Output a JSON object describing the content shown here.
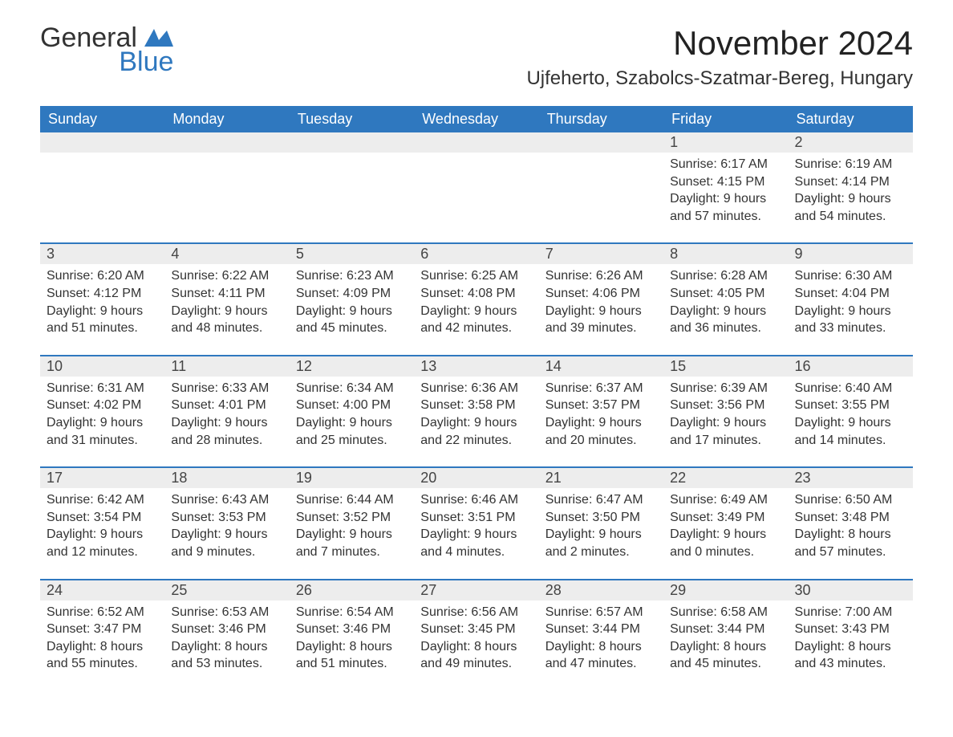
{
  "brand": {
    "name_part1": "General",
    "name_part2": "Blue"
  },
  "title": "November 2024",
  "location": "Ujfeherto, Szabolcs-Szatmar-Bereg, Hungary",
  "colors": {
    "header_bg": "#2f78bf",
    "header_text": "#ffffff",
    "row_bg": "#ededed",
    "border": "#2f78bf",
    "text": "#333333",
    "bg": "#ffffff"
  },
  "days_of_week": [
    "Sunday",
    "Monday",
    "Tuesday",
    "Wednesday",
    "Thursday",
    "Friday",
    "Saturday"
  ],
  "weeks": [
    [
      null,
      null,
      null,
      null,
      null,
      {
        "n": "1",
        "sunrise": "Sunrise: 6:17 AM",
        "sunset": "Sunset: 4:15 PM",
        "d1": "Daylight: 9 hours",
        "d2": "and 57 minutes."
      },
      {
        "n": "2",
        "sunrise": "Sunrise: 6:19 AM",
        "sunset": "Sunset: 4:14 PM",
        "d1": "Daylight: 9 hours",
        "d2": "and 54 minutes."
      }
    ],
    [
      {
        "n": "3",
        "sunrise": "Sunrise: 6:20 AM",
        "sunset": "Sunset: 4:12 PM",
        "d1": "Daylight: 9 hours",
        "d2": "and 51 minutes."
      },
      {
        "n": "4",
        "sunrise": "Sunrise: 6:22 AM",
        "sunset": "Sunset: 4:11 PM",
        "d1": "Daylight: 9 hours",
        "d2": "and 48 minutes."
      },
      {
        "n": "5",
        "sunrise": "Sunrise: 6:23 AM",
        "sunset": "Sunset: 4:09 PM",
        "d1": "Daylight: 9 hours",
        "d2": "and 45 minutes."
      },
      {
        "n": "6",
        "sunrise": "Sunrise: 6:25 AM",
        "sunset": "Sunset: 4:08 PM",
        "d1": "Daylight: 9 hours",
        "d2": "and 42 minutes."
      },
      {
        "n": "7",
        "sunrise": "Sunrise: 6:26 AM",
        "sunset": "Sunset: 4:06 PM",
        "d1": "Daylight: 9 hours",
        "d2": "and 39 minutes."
      },
      {
        "n": "8",
        "sunrise": "Sunrise: 6:28 AM",
        "sunset": "Sunset: 4:05 PM",
        "d1": "Daylight: 9 hours",
        "d2": "and 36 minutes."
      },
      {
        "n": "9",
        "sunrise": "Sunrise: 6:30 AM",
        "sunset": "Sunset: 4:04 PM",
        "d1": "Daylight: 9 hours",
        "d2": "and 33 minutes."
      }
    ],
    [
      {
        "n": "10",
        "sunrise": "Sunrise: 6:31 AM",
        "sunset": "Sunset: 4:02 PM",
        "d1": "Daylight: 9 hours",
        "d2": "and 31 minutes."
      },
      {
        "n": "11",
        "sunrise": "Sunrise: 6:33 AM",
        "sunset": "Sunset: 4:01 PM",
        "d1": "Daylight: 9 hours",
        "d2": "and 28 minutes."
      },
      {
        "n": "12",
        "sunrise": "Sunrise: 6:34 AM",
        "sunset": "Sunset: 4:00 PM",
        "d1": "Daylight: 9 hours",
        "d2": "and 25 minutes."
      },
      {
        "n": "13",
        "sunrise": "Sunrise: 6:36 AM",
        "sunset": "Sunset: 3:58 PM",
        "d1": "Daylight: 9 hours",
        "d2": "and 22 minutes."
      },
      {
        "n": "14",
        "sunrise": "Sunrise: 6:37 AM",
        "sunset": "Sunset: 3:57 PM",
        "d1": "Daylight: 9 hours",
        "d2": "and 20 minutes."
      },
      {
        "n": "15",
        "sunrise": "Sunrise: 6:39 AM",
        "sunset": "Sunset: 3:56 PM",
        "d1": "Daylight: 9 hours",
        "d2": "and 17 minutes."
      },
      {
        "n": "16",
        "sunrise": "Sunrise: 6:40 AM",
        "sunset": "Sunset: 3:55 PM",
        "d1": "Daylight: 9 hours",
        "d2": "and 14 minutes."
      }
    ],
    [
      {
        "n": "17",
        "sunrise": "Sunrise: 6:42 AM",
        "sunset": "Sunset: 3:54 PM",
        "d1": "Daylight: 9 hours",
        "d2": "and 12 minutes."
      },
      {
        "n": "18",
        "sunrise": "Sunrise: 6:43 AM",
        "sunset": "Sunset: 3:53 PM",
        "d1": "Daylight: 9 hours",
        "d2": "and 9 minutes."
      },
      {
        "n": "19",
        "sunrise": "Sunrise: 6:44 AM",
        "sunset": "Sunset: 3:52 PM",
        "d1": "Daylight: 9 hours",
        "d2": "and 7 minutes."
      },
      {
        "n": "20",
        "sunrise": "Sunrise: 6:46 AM",
        "sunset": "Sunset: 3:51 PM",
        "d1": "Daylight: 9 hours",
        "d2": "and 4 minutes."
      },
      {
        "n": "21",
        "sunrise": "Sunrise: 6:47 AM",
        "sunset": "Sunset: 3:50 PM",
        "d1": "Daylight: 9 hours",
        "d2": "and 2 minutes."
      },
      {
        "n": "22",
        "sunrise": "Sunrise: 6:49 AM",
        "sunset": "Sunset: 3:49 PM",
        "d1": "Daylight: 9 hours",
        "d2": "and 0 minutes."
      },
      {
        "n": "23",
        "sunrise": "Sunrise: 6:50 AM",
        "sunset": "Sunset: 3:48 PM",
        "d1": "Daylight: 8 hours",
        "d2": "and 57 minutes."
      }
    ],
    [
      {
        "n": "24",
        "sunrise": "Sunrise: 6:52 AM",
        "sunset": "Sunset: 3:47 PM",
        "d1": "Daylight: 8 hours",
        "d2": "and 55 minutes."
      },
      {
        "n": "25",
        "sunrise": "Sunrise: 6:53 AM",
        "sunset": "Sunset: 3:46 PM",
        "d1": "Daylight: 8 hours",
        "d2": "and 53 minutes."
      },
      {
        "n": "26",
        "sunrise": "Sunrise: 6:54 AM",
        "sunset": "Sunset: 3:46 PM",
        "d1": "Daylight: 8 hours",
        "d2": "and 51 minutes."
      },
      {
        "n": "27",
        "sunrise": "Sunrise: 6:56 AM",
        "sunset": "Sunset: 3:45 PM",
        "d1": "Daylight: 8 hours",
        "d2": "and 49 minutes."
      },
      {
        "n": "28",
        "sunrise": "Sunrise: 6:57 AM",
        "sunset": "Sunset: 3:44 PM",
        "d1": "Daylight: 8 hours",
        "d2": "and 47 minutes."
      },
      {
        "n": "29",
        "sunrise": "Sunrise: 6:58 AM",
        "sunset": "Sunset: 3:44 PM",
        "d1": "Daylight: 8 hours",
        "d2": "and 45 minutes."
      },
      {
        "n": "30",
        "sunrise": "Sunrise: 7:00 AM",
        "sunset": "Sunset: 3:43 PM",
        "d1": "Daylight: 8 hours",
        "d2": "and 43 minutes."
      }
    ]
  ]
}
